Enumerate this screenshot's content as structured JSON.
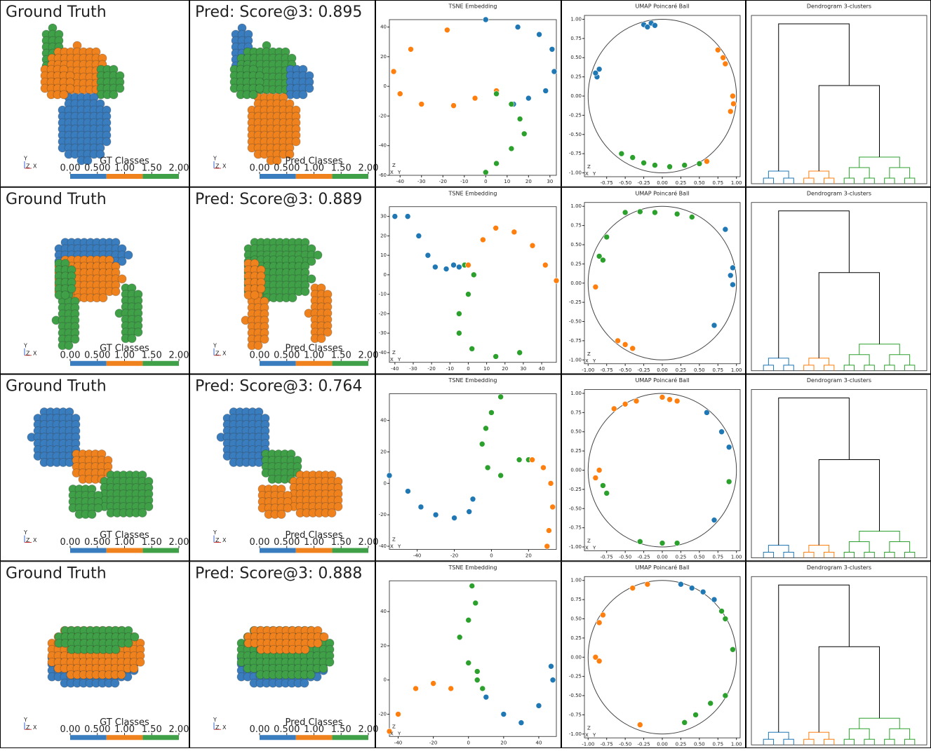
{
  "rows": [
    {
      "gt_title": "Ground Truth",
      "pred_title": "Pred: Score@3: 0.895",
      "gt_colorbar_label": "GT Classes",
      "pred_colorbar_label": "Pred Classes",
      "triad": [
        "Y",
        "Z",
        "X"
      ],
      "colorbar": {
        "clim": [
          0,
          2
        ],
        "colors": [
          "#3a7dbf",
          "#f0821e",
          "#3fa048"
        ],
        "ticks": [
          {
            "value": 0,
            "label": "0.00"
          },
          {
            "value": 0.5,
            "label": "0.500"
          },
          {
            "value": 1,
            "label": "1.00"
          },
          {
            "value": 1.5,
            "label": "1.50"
          },
          {
            "value": 2,
            "label": "2.00"
          }
        ]
      },
      "tsne": {
        "type": "scatter",
        "title": "TSNE Embedding",
        "xlim": [
          -45,
          33
        ],
        "ylim": [
          -60,
          45
        ],
        "xticks": [
          -40,
          -30,
          -20,
          -10,
          0,
          10,
          20,
          30
        ],
        "yticks": [
          -60,
          -40,
          -20,
          0,
          20,
          40
        ],
        "series": [
          {
            "color": "#ff7f0e",
            "x": [
              -18,
              -35,
              -43,
              -40,
              -30,
              -15,
              -5,
              5
            ],
            "y": [
              38,
              25,
              10,
              -5,
              -12,
              -13,
              -8,
              -3
            ]
          },
          {
            "color": "#1f77b4",
            "x": [
              0,
              15,
              25,
              31,
              32,
              28,
              20,
              13
            ],
            "y": [
              45,
              40,
              35,
              25,
              10,
              -3,
              -8,
              -12
            ]
          },
          {
            "color": "#2ca02c",
            "x": [
              5,
              12,
              16,
              18,
              12,
              5,
              0
            ],
            "y": [
              -5,
              -12,
              -22,
              -32,
              -42,
              -52,
              -58
            ]
          }
        ]
      },
      "umap": {
        "type": "scatter",
        "title": "UMAP Poincaré Ball",
        "xlim": [
          -1.05,
          1.05
        ],
        "ylim": [
          -1.05,
          1.05
        ],
        "xticks": [
          -0.75,
          {
            "value": -0.5,
            "label": "-0.50"
          },
          -0.25,
          {
            "value": 0,
            "label": "0.00"
          },
          0.25,
          {
            "value": 0.5,
            "label": "0.50"
          },
          0.75,
          {
            "value": 1,
            "label": "1.00"
          }
        ],
        "yticks": [
          {
            "value": -1,
            "label": "-1.00"
          },
          -0.75,
          {
            "value": -0.5,
            "label": "-0.50"
          },
          -0.25,
          {
            "value": 0,
            "label": "0.00"
          },
          0.25,
          {
            "value": 0.5,
            "label": "0.50"
          },
          0.75,
          {
            "value": 1,
            "label": "1.00"
          }
        ],
        "series": [
          {
            "color": "#1f77b4",
            "x": [
              -0.25,
              -0.2,
              -0.15,
              -0.1,
              -0.85,
              -0.88,
              -0.9
            ],
            "y": [
              0.93,
              0.9,
              0.95,
              0.92,
              0.35,
              0.25,
              0.3
            ]
          },
          {
            "color": "#ff7f0e",
            "x": [
              0.75,
              0.82,
              0.85,
              0.95,
              0.96,
              0.92,
              0.6
            ],
            "y": [
              0.6,
              0.5,
              0.42,
              0.0,
              -0.1,
              -0.2,
              -0.85
            ]
          },
          {
            "color": "#2ca02c",
            "x": [
              -0.55,
              -0.4,
              -0.25,
              -0.1,
              0.1,
              0.3,
              0.5
            ],
            "y": [
              -0.75,
              -0.8,
              -0.87,
              -0.9,
              -0.92,
              -0.9,
              -0.88
            ]
          }
        ]
      },
      "dendrogram": {
        "title": "Dendrogram 3-clusters"
      }
    },
    {
      "gt_title": "Ground Truth",
      "pred_title": "Pred: Score@3: 0.889",
      "gt_colorbar_label": "GT Classes",
      "pred_colorbar_label": "Pred Classes",
      "triad": [
        "Y",
        "Z",
        "X"
      ],
      "colorbar": {
        "clim": [
          0,
          2
        ],
        "colors": [
          "#3a7dbf",
          "#f0821e",
          "#3fa048"
        ],
        "ticks": [
          {
            "value": 0,
            "label": "0.00"
          },
          {
            "value": 0.5,
            "label": "0.500"
          },
          {
            "value": 1,
            "label": "1.00"
          },
          {
            "value": 1.5,
            "label": "1.50"
          },
          {
            "value": 2,
            "label": "2.00"
          }
        ]
      },
      "tsne": {
        "type": "scatter",
        "title": "TSNE Embedding",
        "xlim": [
          -43,
          48
        ],
        "ylim": [
          -45,
          35
        ],
        "xticks": [
          -40,
          -30,
          -20,
          -10,
          0,
          10,
          20,
          30,
          40
        ],
        "yticks": [
          -40,
          -30,
          -20,
          -10,
          0,
          10,
          20,
          30
        ],
        "series": [
          {
            "color": "#1f77b4",
            "x": [
              -40,
              -33,
              -27,
              -22,
              -18,
              -12,
              -8,
              -5
            ],
            "y": [
              30,
              30,
              20,
              10,
              4,
              3,
              5,
              4
            ]
          },
          {
            "color": "#2ca02c",
            "x": [
              -2,
              3,
              0,
              -5,
              -5,
              2,
              15,
              28
            ],
            "y": [
              5,
              0,
              -10,
              -20,
              -30,
              -38,
              -42,
              -40
            ]
          },
          {
            "color": "#ff7f0e",
            "x": [
              0,
              8,
              15,
              25,
              35,
              42,
              48
            ],
            "y": [
              5,
              18,
              24,
              22,
              15,
              5,
              -3
            ]
          }
        ]
      },
      "umap": {
        "type": "scatter",
        "title": "UMAP Poincaré Ball",
        "xlim": [
          -1.05,
          1.05
        ],
        "ylim": [
          -1.05,
          1.05
        ],
        "xticks": [
          {
            "value": -1,
            "label": "-1.00"
          },
          -0.75,
          {
            "value": -0.5,
            "label": "-0.50"
          },
          -0.25,
          {
            "value": 0,
            "label": "0.00"
          },
          0.25,
          {
            "value": 0.5,
            "label": "0.50"
          },
          0.75,
          {
            "value": 1,
            "label": "1.00"
          }
        ],
        "yticks": [
          {
            "value": -1,
            "label": "-1.00"
          },
          -0.75,
          {
            "value": -0.5,
            "label": "-0.50"
          },
          -0.25,
          {
            "value": 0,
            "label": "0.00"
          },
          0.25,
          {
            "value": 0.5,
            "label": "0.50"
          },
          0.75,
          {
            "value": 1,
            "label": "1.00"
          }
        ],
        "series": [
          {
            "color": "#2ca02c",
            "x": [
              -0.5,
              -0.3,
              -0.1,
              0.2,
              0.4,
              -0.75,
              -0.85,
              -0.8
            ],
            "y": [
              0.92,
              0.93,
              0.92,
              0.9,
              0.86,
              0.6,
              0.35,
              0.3
            ]
          },
          {
            "color": "#1f77b4",
            "x": [
              0.85,
              0.95,
              0.92,
              0.95,
              0.7
            ],
            "y": [
              0.7,
              0.2,
              0.1,
              -0.02,
              -0.55
            ]
          },
          {
            "color": "#ff7f0e",
            "x": [
              -0.9,
              -0.6,
              -0.5,
              -0.4
            ],
            "y": [
              -0.05,
              -0.75,
              -0.8,
              -0.85
            ]
          }
        ]
      },
      "dendrogram": {
        "title": "Dendrogram 3-clusters"
      }
    },
    {
      "gt_title": "Ground Truth",
      "pred_title": "Pred: Score@3: 0.764",
      "gt_colorbar_label": "GT Classes",
      "pred_colorbar_label": "Pred Classes",
      "triad": [
        "Y",
        "Z",
        "X"
      ],
      "colorbar": {
        "clim": [
          0,
          2
        ],
        "colors": [
          "#3a7dbf",
          "#f0821e",
          "#3fa048"
        ],
        "ticks": [
          {
            "value": 0,
            "label": "0.00"
          },
          {
            "value": 0.5,
            "label": "0.500"
          },
          {
            "value": 1,
            "label": "1.00"
          },
          {
            "value": 1.5,
            "label": "1.50"
          },
          {
            "value": 2,
            "label": "2.00"
          }
        ]
      },
      "tsne": {
        "type": "scatter",
        "title": "TSNE Embedding",
        "xlim": [
          -55,
          35
        ],
        "ylim": [
          -42,
          57
        ],
        "xticks": [
          -40,
          -20,
          0,
          20
        ],
        "yticks": [
          -40,
          -20,
          0,
          20,
          40
        ],
        "series": [
          {
            "color": "#2ca02c",
            "x": [
              5,
              0,
              -3,
              -5,
              -2,
              5,
              15,
              20
            ],
            "y": [
              55,
              45,
              35,
              25,
              10,
              5,
              15,
              15
            ]
          },
          {
            "color": "#1f77b4",
            "x": [
              -55,
              -45,
              -38,
              -30,
              -20,
              -12,
              -10
            ],
            "y": [
              5,
              -5,
              -15,
              -20,
              -22,
              -18,
              -10
            ]
          },
          {
            "color": "#ff7f0e",
            "x": [
              22,
              28,
              32,
              33,
              31,
              30
            ],
            "y": [
              15,
              10,
              0,
              -15,
              -30,
              -40
            ]
          }
        ]
      },
      "umap": {
        "type": "scatter",
        "title": "UMAP Poincaré Ball",
        "xlim": [
          -1.05,
          1.05
        ],
        "ylim": [
          -1.05,
          1.05
        ],
        "xticks": [
          -0.75,
          {
            "value": -0.5,
            "label": "-0.50"
          },
          -0.25,
          {
            "value": 0,
            "label": "0.00"
          },
          0.25,
          {
            "value": 0.5,
            "label": "0.50"
          },
          0.75,
          {
            "value": 1,
            "label": "1.00"
          }
        ],
        "yticks": [
          {
            "value": -1,
            "label": "-1.00"
          },
          -0.75,
          {
            "value": -0.5,
            "label": "-0.50"
          },
          -0.25,
          {
            "value": 0,
            "label": "0.00"
          },
          0.25,
          {
            "value": 0.5,
            "label": "0.50"
          },
          0.75,
          {
            "value": 1,
            "label": "1.00"
          }
        ],
        "series": [
          {
            "color": "#ff7f0e",
            "x": [
              -0.65,
              -0.5,
              -0.35,
              0,
              0.1,
              0.2,
              -0.9,
              -0.85
            ],
            "y": [
              0.8,
              0.86,
              0.9,
              0.95,
              0.92,
              0.9,
              -0.1,
              0.0
            ]
          },
          {
            "color": "#1f77b4",
            "x": [
              0.6,
              0.8,
              0.9,
              0.7
            ],
            "y": [
              0.75,
              0.5,
              0.3,
              -0.65
            ]
          },
          {
            "color": "#2ca02c",
            "x": [
              -0.8,
              -0.75,
              0.9,
              -0.3,
              0,
              0.2
            ],
            "y": [
              -0.2,
              -0.3,
              -0.15,
              -0.93,
              -0.95,
              -0.95
            ]
          }
        ]
      },
      "dendrogram": {
        "title": "Dendrogram 3-clusters"
      }
    },
    {
      "gt_title": "Ground Truth",
      "pred_title": "Pred: Score@3: 0.888",
      "gt_colorbar_label": "GT Classes",
      "pred_colorbar_label": "Pred Classes",
      "triad": [
        "Y",
        "Z",
        "X"
      ],
      "colorbar": {
        "clim": [
          0,
          2
        ],
        "colors": [
          "#3a7dbf",
          "#f0821e",
          "#3fa048"
        ],
        "ticks": [
          {
            "value": 0,
            "label": "0.00"
          },
          {
            "value": 0.5,
            "label": "0.500"
          },
          {
            "value": 1,
            "label": "1.00"
          },
          {
            "value": 1.5,
            "label": "1.50"
          },
          {
            "value": 2,
            "label": "2.00"
          }
        ]
      },
      "tsne": {
        "type": "scatter",
        "title": "TSNE Embedding",
        "xlim": [
          -45,
          50
        ],
        "ylim": [
          -33,
          58
        ],
        "xticks": [
          -40,
          -20,
          0,
          20,
          40
        ],
        "yticks": [
          -20,
          0,
          20,
          40
        ],
        "series": [
          {
            "color": "#2ca02c",
            "x": [
              2,
              4,
              0,
              -5,
              0,
              5,
              8,
              5
            ],
            "y": [
              55,
              45,
              35,
              25,
              10,
              0,
              -5,
              5
            ]
          },
          {
            "color": "#ff7f0e",
            "x": [
              -45,
              -40,
              -30,
              -20,
              -10
            ],
            "y": [
              -30,
              -20,
              -5,
              -2,
              -5
            ]
          },
          {
            "color": "#1f77b4",
            "x": [
              10,
              20,
              30,
              40,
              48,
              47
            ],
            "y": [
              -10,
              -20,
              -25,
              -15,
              0,
              8
            ]
          }
        ]
      },
      "umap": {
        "type": "scatter",
        "title": "UMAP Poincaré Ball",
        "xlim": [
          -1.05,
          1.05
        ],
        "ylim": [
          -1.05,
          1.05
        ],
        "xticks": [
          {
            "value": -1,
            "label": "-1.00"
          },
          -0.75,
          {
            "value": -0.5,
            "label": "-0.50"
          },
          -0.25,
          {
            "value": 0,
            "label": "0.00"
          },
          0.25,
          {
            "value": 0.5,
            "label": "0.50"
          },
          0.75,
          {
            "value": 1,
            "label": "1.00"
          }
        ],
        "yticks": [
          {
            "value": -1,
            "label": "-1.00"
          },
          -0.75,
          {
            "value": -0.5,
            "label": "-0.50"
          },
          -0.25,
          {
            "value": 0,
            "label": "0.00"
          },
          0.25,
          {
            "value": 0.5,
            "label": "0.50"
          },
          0.75,
          {
            "value": 1,
            "label": "1.00"
          }
        ],
        "series": [
          {
            "color": "#1f77b4",
            "x": [
              0.25,
              0.4,
              0.55,
              0.7
            ],
            "y": [
              0.95,
              0.9,
              0.85,
              0.75
            ]
          },
          {
            "color": "#ff7f0e",
            "x": [
              -0.4,
              -0.2,
              -0.8,
              -0.85,
              -0.9,
              -0.85,
              -0.3
            ],
            "y": [
              0.9,
              0.95,
              0.55,
              0.45,
              0.0,
              -0.05,
              -0.88
            ]
          },
          {
            "color": "#2ca02c",
            "x": [
              0.8,
              0.85,
              0.95,
              0.85,
              0.65,
              0.45,
              0.3
            ],
            "y": [
              0.6,
              0.5,
              0.1,
              -0.5,
              -0.6,
              -0.75,
              -0.85
            ]
          }
        ]
      },
      "dendrogram": {
        "title": "Dendrogram 3-clusters"
      }
    }
  ]
}
